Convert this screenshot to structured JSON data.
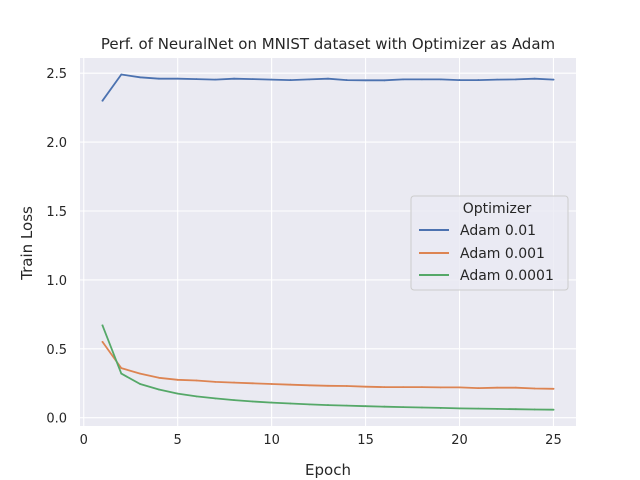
{
  "chart_data": {
    "type": "line",
    "title": "Perf. of NeuralNet on MNIST dataset with Optimizer as Adam",
    "xlabel": "Epoch",
    "ylabel": "Train Loss",
    "xlim": [
      -0.2,
      26.2
    ],
    "ylim": [
      -0.06,
      2.61
    ],
    "xticks": [
      0,
      5,
      10,
      15,
      20,
      25
    ],
    "yticks": [
      0.0,
      0.5,
      1.0,
      1.5,
      2.0,
      2.5
    ],
    "xtick_labels": [
      "0",
      "5",
      "10",
      "15",
      "20",
      "25"
    ],
    "ytick_labels": [
      "0.0",
      "0.5",
      "1.0",
      "1.5",
      "2.0",
      "2.5"
    ],
    "grid": true,
    "legend": {
      "title": "Optimizer",
      "placement": "center-right"
    },
    "x": [
      1,
      2,
      3,
      4,
      5,
      6,
      7,
      8,
      9,
      10,
      11,
      12,
      13,
      14,
      15,
      16,
      17,
      18,
      19,
      20,
      21,
      22,
      23,
      24,
      25
    ],
    "series": [
      {
        "name": "Adam 0.01",
        "color": "#4c72b0",
        "values": [
          2.3,
          2.49,
          2.47,
          2.46,
          2.46,
          2.457,
          2.453,
          2.46,
          2.457,
          2.453,
          2.45,
          2.455,
          2.46,
          2.45,
          2.448,
          2.448,
          2.455,
          2.455,
          2.455,
          2.45,
          2.45,
          2.453,
          2.455,
          2.46,
          2.453
        ]
      },
      {
        "name": "Adam 0.001",
        "color": "#dd8452",
        "values": [
          0.55,
          0.36,
          0.32,
          0.29,
          0.275,
          0.27,
          0.26,
          0.255,
          0.25,
          0.245,
          0.24,
          0.235,
          0.232,
          0.23,
          0.225,
          0.222,
          0.222,
          0.222,
          0.22,
          0.22,
          0.215,
          0.218,
          0.218,
          0.212,
          0.21
        ]
      },
      {
        "name": "Adam 0.0001",
        "color": "#55a868",
        "values": [
          0.67,
          0.32,
          0.245,
          0.205,
          0.175,
          0.155,
          0.14,
          0.128,
          0.118,
          0.11,
          0.103,
          0.097,
          0.092,
          0.088,
          0.084,
          0.08,
          0.077,
          0.074,
          0.071,
          0.068,
          0.066,
          0.064,
          0.062,
          0.06,
          0.058
        ]
      }
    ]
  }
}
